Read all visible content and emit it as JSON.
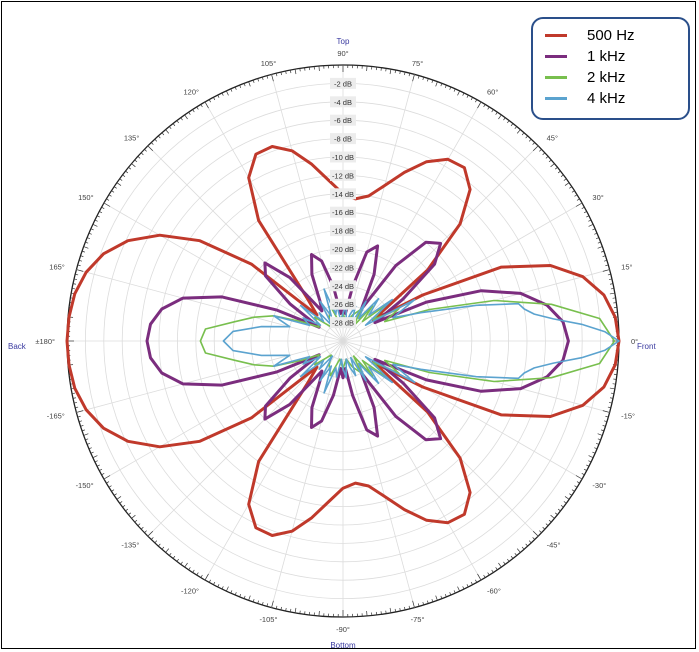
{
  "chart_data": {
    "type": "polar",
    "title": "",
    "direction_labels": {
      "top": "Top",
      "bottom": "Bottom",
      "front": "Front",
      "back": "Back"
    },
    "angle_ticks": [
      "0°",
      "15°",
      "30°",
      "45°",
      "60°",
      "75°",
      "90°",
      "105°",
      "120°",
      "135°",
      "150°",
      "165°",
      "±180°",
      "-165°",
      "-150°",
      "-135°",
      "-120°",
      "-105°",
      "-90°",
      "-75°",
      "-60°",
      "-45°",
      "-30°",
      "-15°"
    ],
    "angle_values": [
      0,
      15,
      30,
      45,
      60,
      75,
      90,
      105,
      120,
      135,
      150,
      165,
      180,
      -165,
      -150,
      -135,
      -120,
      -105,
      -90,
      -75,
      -60,
      -45,
      -30,
      -15
    ],
    "radial_ticks": [
      "-2 dB",
      "-4 dB",
      "-6 dB",
      "-8 dB",
      "-10 dB",
      "-12 dB",
      "-14 dB",
      "-16 dB",
      "-18 dB",
      "-20 dB",
      "-22 dB",
      "-24 dB",
      "-26 dB",
      "-28 dB"
    ],
    "radial_values": [
      -2,
      -4,
      -6,
      -8,
      -10,
      -12,
      -14,
      -16,
      -18,
      -20,
      -22,
      -24,
      -26,
      -28
    ],
    "r_range_db": [
      -30,
      0
    ],
    "grid": true,
    "legend_position": "top-right",
    "series": [
      {
        "name": "500 Hz",
        "color": "#c0392b",
        "angles": [
          0,
          5,
          10,
          15,
          20,
          25,
          30,
          35,
          40,
          45,
          50,
          55,
          60,
          65,
          70,
          75,
          80,
          85,
          90,
          95,
          100,
          105,
          110,
          115,
          120,
          125,
          130,
          135,
          140,
          145,
          150,
          155,
          160,
          165,
          170,
          175,
          180
        ],
        "values_db": [
          0,
          -0.3,
          -1.2,
          -3,
          -6,
          -11,
          -20,
          -26,
          -18,
          -12,
          -8.5,
          -7,
          -7.2,
          -8.5,
          -10.5,
          -12.5,
          -14,
          -14.5,
          -14,
          -12.5,
          -10.5,
          -8.6,
          -7.5,
          -7.6,
          -9.5,
          -14,
          -24,
          -26,
          -17,
          -11,
          -7,
          -4.2,
          -2.3,
          -1.1,
          -0.4,
          -0.1,
          0
        ]
      },
      {
        "name": "1 kHz",
        "color": "#7b2d7e",
        "angles": [
          0,
          5,
          10,
          15,
          20,
          25,
          30,
          35,
          40,
          45,
          50,
          55,
          60,
          65,
          70,
          75,
          80,
          85,
          90,
          95,
          100,
          105,
          110,
          115,
          120,
          125,
          130,
          135,
          140,
          145,
          150,
          155,
          160,
          165,
          170,
          175,
          180
        ],
        "values_db": [
          -5.5,
          -6,
          -7.5,
          -10,
          -14,
          -20,
          -26,
          -22,
          -17,
          -15,
          -16,
          -20,
          -26,
          -22,
          -19,
          -20,
          -24,
          -27,
          -26,
          -27,
          -24,
          -21,
          -20,
          -22,
          -25,
          -26,
          -21,
          -18,
          -19,
          -23,
          -27,
          -22,
          -16,
          -12,
          -10,
          -9,
          -8.7
        ]
      },
      {
        "name": "2 kHz",
        "color": "#78bf4e",
        "angles": [
          0,
          5,
          10,
          15,
          20,
          25,
          30,
          35,
          40,
          45,
          50,
          55,
          60,
          70,
          80,
          90,
          100,
          110,
          120,
          130,
          140,
          150,
          155,
          160,
          165,
          170,
          175,
          180
        ],
        "values_db": [
          -0.5,
          -2,
          -7,
          -13,
          -20,
          -25,
          -23,
          -26,
          -24,
          -27,
          -25,
          -28,
          -26,
          -27,
          -28,
          -27,
          -28,
          -26,
          -27,
          -28,
          -26,
          -27,
          -25,
          -22,
          -20,
          -18,
          -15,
          -14.5
        ]
      },
      {
        "name": "4 kHz",
        "color": "#5ba3cf",
        "angles": [
          0,
          2,
          4,
          6,
          8,
          10,
          12,
          15,
          20,
          25,
          30,
          35,
          40,
          45,
          50,
          55,
          60,
          65,
          70,
          75,
          80,
          85,
          90,
          95,
          100,
          105,
          110,
          115,
          120,
          125,
          130,
          135,
          140,
          145,
          150,
          155,
          160,
          165,
          170,
          175,
          180
        ],
        "values_db": [
          0,
          -1.5,
          -4,
          -7,
          -9,
          -10,
          -10.5,
          -15,
          -21,
          -24,
          -21,
          -27,
          -23,
          -26,
          -24,
          -27,
          -25,
          -28,
          -26,
          -27,
          -28,
          -26,
          -27,
          -28,
          -26,
          -27,
          -24,
          -27,
          -25,
          -28,
          -26,
          -27,
          -24,
          -27,
          -25,
          -26,
          -22,
          -24,
          -21,
          -18,
          -17
        ]
      }
    ]
  }
}
